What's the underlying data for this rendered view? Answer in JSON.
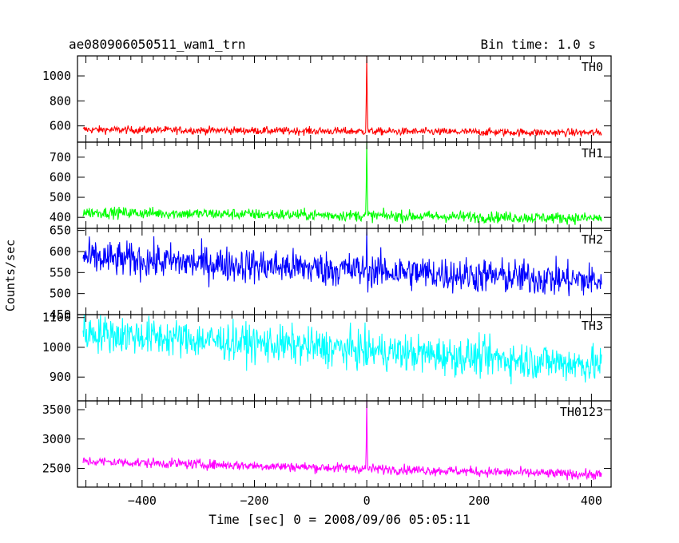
{
  "header": {
    "title": "ae080906050511_wam1_trn",
    "bin_time": "Bin time: 1.0 s"
  },
  "axes": {
    "xlabel": "Time [sec] 0 = 2008/09/06 05:05:11",
    "ylabel": "Counts/sec",
    "xlim": [
      -515,
      435
    ],
    "xticks": [
      -400,
      -200,
      0,
      200,
      400
    ],
    "xtick_labels": [
      "−400",
      "−200",
      "0",
      "200",
      "400"
    ]
  },
  "chart_data": [
    {
      "type": "line",
      "name": "TH0",
      "color": "#ff0000",
      "ylim": [
        470,
        1160
      ],
      "yticks": [
        600,
        800,
        1000
      ],
      "ytick_labels": [
        "600",
        "800",
        "1000"
      ],
      "x_range": [
        -505,
        418
      ],
      "baseline_start": 570,
      "baseline_end": 545,
      "noise": 22,
      "spike": {
        "x": 0,
        "peak": 1160
      }
    },
    {
      "type": "line",
      "name": "TH1",
      "color": "#00ff00",
      "ylim": [
        345,
        775
      ],
      "yticks": [
        400,
        500,
        600,
        700
      ],
      "ytick_labels": [
        "400",
        "500",
        "600",
        "700"
      ],
      "x_range": [
        -505,
        418
      ],
      "baseline_start": 425,
      "baseline_end": 395,
      "noise": 20,
      "spike": {
        "x": 0,
        "peak": 775
      }
    },
    {
      "type": "line",
      "name": "TH2",
      "color": "#0000ff",
      "ylim": [
        450,
        655
      ],
      "yticks": [
        450,
        500,
        550,
        600,
        650
      ],
      "ytick_labels": [
        "450",
        "500",
        "550",
        "600",
        "650"
      ],
      "x_range": [
        -505,
        418
      ],
      "baseline_start": 585,
      "baseline_end": 530,
      "noise": 30,
      "spike": {
        "x": 0,
        "peak": 655
      }
    },
    {
      "type": "line",
      "name": "TH3",
      "color": "#00ffff",
      "ylim": [
        820,
        1110
      ],
      "yticks": [
        900,
        1000,
        1100
      ],
      "ytick_labels": [
        "900",
        "1000",
        "1100"
      ],
      "x_range": [
        -505,
        418
      ],
      "baseline_start": 1050,
      "baseline_end": 940,
      "noise": 45,
      "spike": {
        "x": 0,
        "peak": 1020
      }
    },
    {
      "type": "line",
      "name": "TH0123",
      "color": "#ff00ff",
      "ylim": [
        2180,
        3650
      ],
      "yticks": [
        2500,
        3000,
        3500
      ],
      "ytick_labels": [
        "2500",
        "3000",
        "3500"
      ],
      "x_range": [
        -505,
        418
      ],
      "baseline_start": 2620,
      "baseline_end": 2390,
      "noise": 60,
      "spike": {
        "x": 0,
        "peak": 3650
      }
    }
  ]
}
